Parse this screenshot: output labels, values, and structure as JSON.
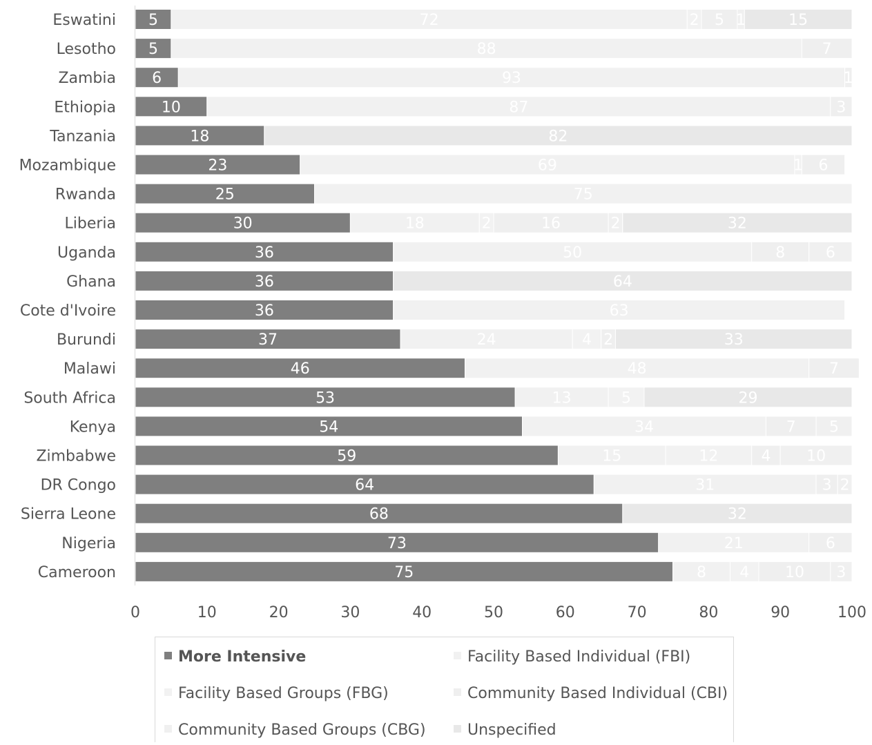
{
  "chart_data": {
    "type": "bar",
    "orientation": "horizontal",
    "stacked": true,
    "categories": [
      "Eswatini",
      "Lesotho",
      "Zambia",
      "Ethiopia",
      "Tanzania",
      "Mozambique",
      "Rwanda",
      "Liberia",
      "Uganda",
      "Ghana",
      "Cote d'Ivoire",
      "Burundi",
      "Malawi",
      "South Africa",
      "Kenya",
      "Zimbabwe",
      "DR Congo",
      "Sierra Leone",
      "Nigeria",
      "Cameroon"
    ],
    "series": [
      {
        "name": "More Intensive",
        "color": "#7f7f7f",
        "label_color": "#ffffff",
        "values": [
          5,
          5,
          6,
          10,
          18,
          23,
          25,
          30,
          36,
          36,
          36,
          37,
          46,
          53,
          54,
          59,
          64,
          68,
          73,
          75
        ]
      },
      {
        "name": "Facility Based Individual (FBI)",
        "color": "#f1f1f1",
        "label_color": "#ffffff",
        "values": [
          72,
          88,
          93,
          87,
          0,
          69,
          75,
          18,
          50,
          0,
          63,
          24,
          48,
          13,
          34,
          15,
          31,
          0,
          21,
          8
        ]
      },
      {
        "name": "Facility Based Groups (FBG)",
        "color": "#f2f2f2",
        "label_color": "#ffffff",
        "values": [
          2,
          0,
          0,
          0,
          0,
          1,
          0,
          2,
          0,
          0,
          0,
          4,
          0,
          5,
          0,
          12,
          0,
          0,
          0,
          4
        ]
      },
      {
        "name": "Community Based Individual (CBI)",
        "color": "#efefef",
        "label_color": "#ffffff",
        "values": [
          5,
          7,
          1,
          3,
          0,
          6,
          0,
          16,
          8,
          0,
          0,
          2,
          7,
          0,
          7,
          4,
          3,
          0,
          6,
          10
        ]
      },
      {
        "name": "Community Based Groups (CBG)",
        "color": "#f0f0f0",
        "label_color": "#ffffff",
        "values": [
          1,
          0,
          0,
          0,
          0,
          0,
          0,
          2,
          6,
          0,
          0,
          0,
          0,
          0,
          5,
          10,
          2,
          0,
          0,
          3
        ]
      },
      {
        "name": "Unspecified",
        "color": "#e8e8e8",
        "label_color": "#ffffff",
        "values": [
          15,
          0,
          0,
          0,
          82,
          0,
          0,
          32,
          0,
          64,
          0,
          33,
          0,
          29,
          0,
          0,
          0,
          32,
          0,
          0
        ]
      }
    ],
    "x_ticks": [
      0,
      10,
      20,
      30,
      40,
      50,
      60,
      70,
      80,
      90,
      100
    ],
    "xlim": [
      0,
      100
    ],
    "title": "",
    "xlabel": "",
    "ylabel": "",
    "grid": false,
    "legend_position": "bottom",
    "axis_color": "#d9d9d9",
    "text_color": "#555555"
  }
}
